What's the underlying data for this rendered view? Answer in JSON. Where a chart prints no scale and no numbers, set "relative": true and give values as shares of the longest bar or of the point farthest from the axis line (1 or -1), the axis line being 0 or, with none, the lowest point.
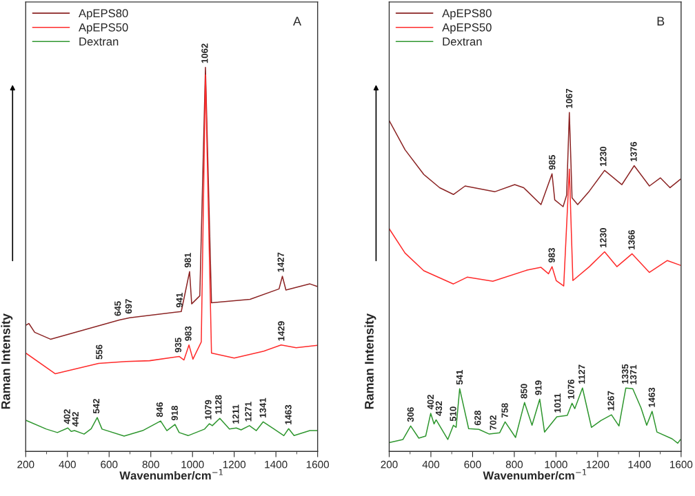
{
  "chart_data": [
    {
      "type": "line",
      "relative": true,
      "xlabel": "Wavenumber/cm$^{−1}$",
      "ylabel": "Raman Intensity",
      "xlim": [
        200,
        1600
      ],
      "xticks": [
        200,
        400,
        600,
        800,
        1000,
        1200,
        1400,
        1600
      ],
      "legend": "top left",
      "grid": false,
      "series": [
        {
          "name": "ApEPS80",
          "color": "#8b2323",
          "x": [
            200,
            215,
            243,
            319,
            649,
            699,
            946,
            986,
            996,
            1035,
            1062,
            1091,
            1276,
            1415,
            1431,
            1448,
            1563,
            1600
          ],
          "values": [
            0.328,
            0.333,
            0.31,
            0.292,
            0.342,
            0.348,
            0.364,
            0.468,
            0.384,
            0.405,
            1.0,
            0.387,
            0.396,
            0.423,
            0.456,
            0.42,
            0.436,
            0.429
          ]
        },
        {
          "name": "ApEPS50",
          "color": "#ff2a2a",
          "x": [
            200,
            342,
            550,
            682,
            794,
            936,
            959,
            983,
            1002,
            1042,
            1062,
            1091,
            1200,
            1342,
            1425,
            1497,
            1600
          ],
          "values": [
            0.256,
            0.202,
            0.229,
            0.234,
            0.236,
            0.247,
            0.238,
            0.277,
            0.24,
            0.285,
            0.98,
            0.256,
            0.243,
            0.261,
            0.277,
            0.27,
            0.276
          ]
        },
        {
          "name": "Dextran",
          "color": "#2e962e",
          "x": [
            200,
            299,
            352,
            402,
            418,
            434,
            480,
            514,
            543,
            566,
            672,
            761,
            847,
            877,
            916,
            936,
            979,
            1058,
            1081,
            1095,
            1131,
            1177,
            1210,
            1233,
            1273,
            1306,
            1339,
            1389,
            1438,
            1461,
            1487,
            1563,
            1600
          ],
          "values": [
            0.081,
            0.058,
            0.049,
            0.061,
            0.052,
            0.054,
            0.045,
            0.059,
            0.088,
            0.058,
            0.04,
            0.054,
            0.079,
            0.054,
            0.07,
            0.049,
            0.041,
            0.058,
            0.072,
            0.067,
            0.086,
            0.058,
            0.061,
            0.056,
            0.067,
            0.054,
            0.077,
            0.059,
            0.041,
            0.059,
            0.041,
            0.054,
            0.054
          ]
        }
      ],
      "annotations": [
        "A",
        {
          "text": "645",
          "x": 645,
          "y": 0.342
        },
        {
          "text": "697",
          "x": 697,
          "y": 0.348
        },
        {
          "text": "941",
          "x": 941,
          "y": 0.364
        },
        {
          "text": "981",
          "x": 981,
          "y": 0.468
        },
        {
          "text": "1062",
          "x": 1062,
          "y": 1.0
        },
        {
          "text": "1427",
          "x": 1427,
          "y": 0.456
        },
        {
          "text": "556",
          "x": 556,
          "y": 0.229
        },
        {
          "text": "935",
          "x": 935,
          "y": 0.247
        },
        {
          "text": "983",
          "x": 983,
          "y": 0.277
        },
        {
          "text": "1429",
          "x": 1429,
          "y": 0.277
        },
        {
          "text": "402",
          "x": 402,
          "y": 0.061
        },
        {
          "text": "442",
          "x": 442,
          "y": 0.054
        },
        {
          "text": "542",
          "x": 542,
          "y": 0.088
        },
        {
          "text": "846",
          "x": 846,
          "y": 0.079
        },
        {
          "text": "918",
          "x": 918,
          "y": 0.07
        },
        {
          "text": "1079",
          "x": 1079,
          "y": 0.072
        },
        {
          "text": "1128",
          "x": 1128,
          "y": 0.086
        },
        {
          "text": "1211",
          "x": 1211,
          "y": 0.061
        },
        {
          "text": "1271",
          "x": 1271,
          "y": 0.067
        },
        {
          "text": "1341",
          "x": 1341,
          "y": 0.077
        },
        {
          "text": "1463",
          "x": 1463,
          "y": 0.059
        }
      ]
    },
    {
      "type": "line",
      "relative": true,
      "xlabel": "Wavenumber/cm$^{−1}$",
      "ylabel": "Raman Intensity",
      "xlim": [
        200,
        1600
      ],
      "xticks": [
        200,
        400,
        600,
        800,
        1000,
        1200,
        1400,
        1600
      ],
      "legend": "top left",
      "grid": false,
      "series": [
        {
          "name": "ApEPS80",
          "color": "#8b2323",
          "x": [
            200,
            276,
            366,
            442,
            508,
            564,
            706,
            802,
            845,
            928,
            981,
            994,
            1034,
            1051,
            1064,
            1077,
            1104,
            1160,
            1233,
            1316,
            1375,
            1448,
            1501,
            1547,
            1597
          ],
          "values": [
            0.976,
            0.89,
            0.817,
            0.778,
            0.758,
            0.783,
            0.766,
            0.787,
            0.778,
            0.728,
            0.819,
            0.742,
            0.722,
            0.756,
            1.0,
            0.748,
            0.728,
            0.768,
            0.829,
            0.787,
            0.843,
            0.783,
            0.807,
            0.778,
            0.803
          ]
        },
        {
          "name": "ApEPS50",
          "color": "#ff2a2a",
          "x": [
            200,
            276,
            366,
            508,
            574,
            697,
            862,
            928,
            964,
            981,
            1001,
            1037,
            1064,
            1081,
            1160,
            1233,
            1292,
            1365,
            1448,
            1534,
            1597
          ],
          "values": [
            0.657,
            0.585,
            0.533,
            0.494,
            0.514,
            0.502,
            0.535,
            0.543,
            0.524,
            0.545,
            0.504,
            0.488,
            0.833,
            0.504,
            0.545,
            0.589,
            0.545,
            0.583,
            0.528,
            0.563,
            0.549
          ]
        },
        {
          "name": "Dextran",
          "color": "#2e962e",
          "x": [
            200,
            266,
            303,
            342,
            375,
            399,
            415,
            425,
            481,
            508,
            521,
            538,
            581,
            630,
            680,
            730,
            756,
            806,
            849,
            885,
            922,
            945,
            1004,
            1054,
            1077,
            1090,
            1127,
            1170,
            1216,
            1266,
            1302,
            1335,
            1368,
            1408,
            1435,
            1461,
            1484,
            1557,
            1584,
            1597
          ],
          "values": [
            0.026,
            0.035,
            0.075,
            0.039,
            0.045,
            0.112,
            0.081,
            0.093,
            0.035,
            0.077,
            0.071,
            0.185,
            0.067,
            0.065,
            0.051,
            0.055,
            0.087,
            0.041,
            0.144,
            0.077,
            0.154,
            0.057,
            0.102,
            0.106,
            0.142,
            0.126,
            0.187,
            0.071,
            0.091,
            0.108,
            0.075,
            0.187,
            0.185,
            0.128,
            0.077,
            0.118,
            0.057,
            0.037,
            0.024,
            0.035
          ]
        }
      ],
      "annotations": [
        "B",
        {
          "text": "985",
          "x": 985,
          "y": 0.819
        },
        {
          "text": "1067",
          "x": 1067,
          "y": 1.0
        },
        {
          "text": "1230",
          "x": 1230,
          "y": 0.829
        },
        {
          "text": "1376",
          "x": 1376,
          "y": 0.843
        },
        {
          "text": "983",
          "x": 983,
          "y": 0.545
        },
        {
          "text": "1230",
          "x": 1230,
          "y": 0.589
        },
        {
          "text": "1366",
          "x": 1366,
          "y": 0.583
        },
        {
          "text": "306",
          "x": 306,
          "y": 0.075
        },
        {
          "text": "402",
          "x": 402,
          "y": 0.112
        },
        {
          "text": "432",
          "x": 432,
          "y": 0.093
        },
        {
          "text": "510",
          "x": 510,
          "y": 0.077
        },
        {
          "text": "541",
          "x": 541,
          "y": 0.185
        },
        {
          "text": "628",
          "x": 628,
          "y": 0.065
        },
        {
          "text": "702",
          "x": 702,
          "y": 0.051
        },
        {
          "text": "758",
          "x": 758,
          "y": 0.087
        },
        {
          "text": "850",
          "x": 850,
          "y": 0.144
        },
        {
          "text": "919",
          "x": 919,
          "y": 0.154
        },
        {
          "text": "1011",
          "x": 1011,
          "y": 0.102
        },
        {
          "text": "1076",
          "x": 1076,
          "y": 0.142
        },
        {
          "text": "1127",
          "x": 1127,
          "y": 0.187
        },
        {
          "text": "1267",
          "x": 1267,
          "y": 0.108
        },
        {
          "text": "1335",
          "x": 1335,
          "y": 0.187
        },
        {
          "text": "1371",
          "x": 1371,
          "y": 0.185
        },
        {
          "text": "1463",
          "x": 1463,
          "y": 0.118
        }
      ]
    }
  ]
}
